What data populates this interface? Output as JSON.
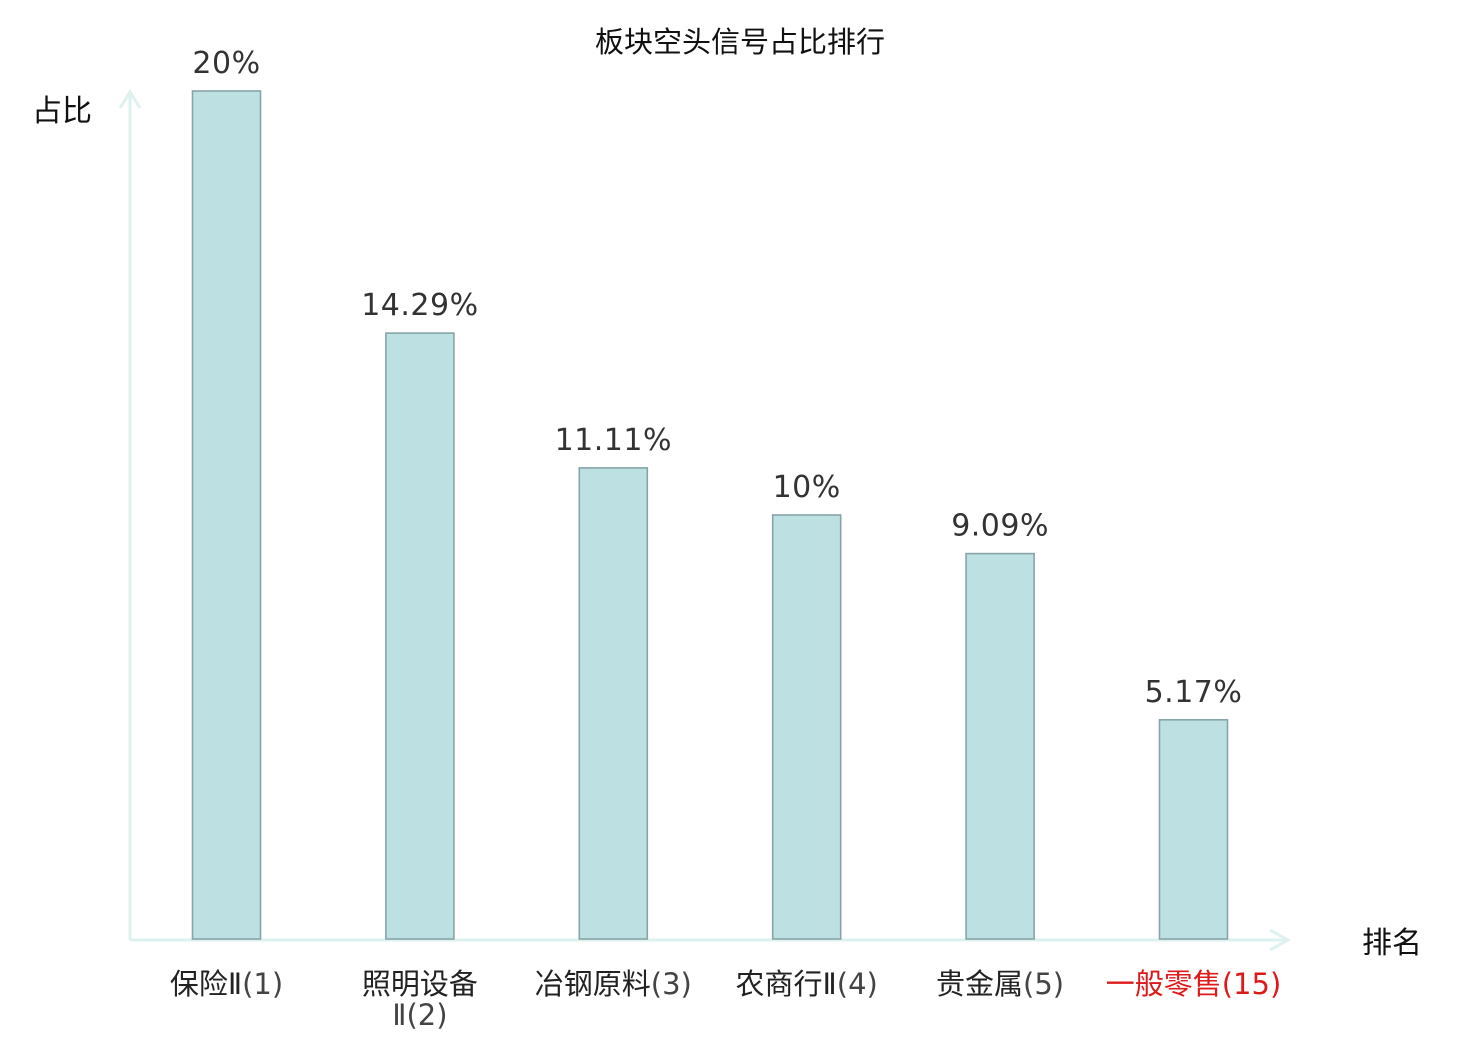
{
  "chart_data": {
    "type": "bar",
    "title": "板块空头信号占比排行",
    "ylabel": "占比",
    "xlabel": "排名",
    "ylim": [
      0,
      20
    ],
    "grid": false,
    "legend": "none",
    "categories": [
      {
        "name": "保险Ⅱ",
        "rank": "(1)",
        "highlight": false
      },
      {
        "name": "照明设备",
        "name2": "Ⅱ",
        "rank": "(2)",
        "highlight": false
      },
      {
        "name": "冶钢原料",
        "rank": "(3)",
        "highlight": false
      },
      {
        "name": "农商行Ⅱ",
        "rank": "(4)",
        "highlight": false
      },
      {
        "name": "贵金属",
        "rank": "(5)",
        "highlight": false
      },
      {
        "name": "一般零售",
        "rank": "(15)",
        "highlight": true
      }
    ],
    "series": [
      {
        "values": [
          20,
          14.29,
          11.11,
          10,
          9.09,
          5.17
        ],
        "labels": [
          "20%",
          "14.29%",
          "11.11%",
          "10%",
          "9.09%",
          "5.17%"
        ]
      }
    ],
    "colors": {
      "bar_fill": "#bde0e3",
      "bar_stroke": "#87a5a8",
      "axis": "#ddf1ee",
      "label_text": "#222222",
      "rank_text": "#444444",
      "highlight": "#dd1a1a"
    }
  }
}
